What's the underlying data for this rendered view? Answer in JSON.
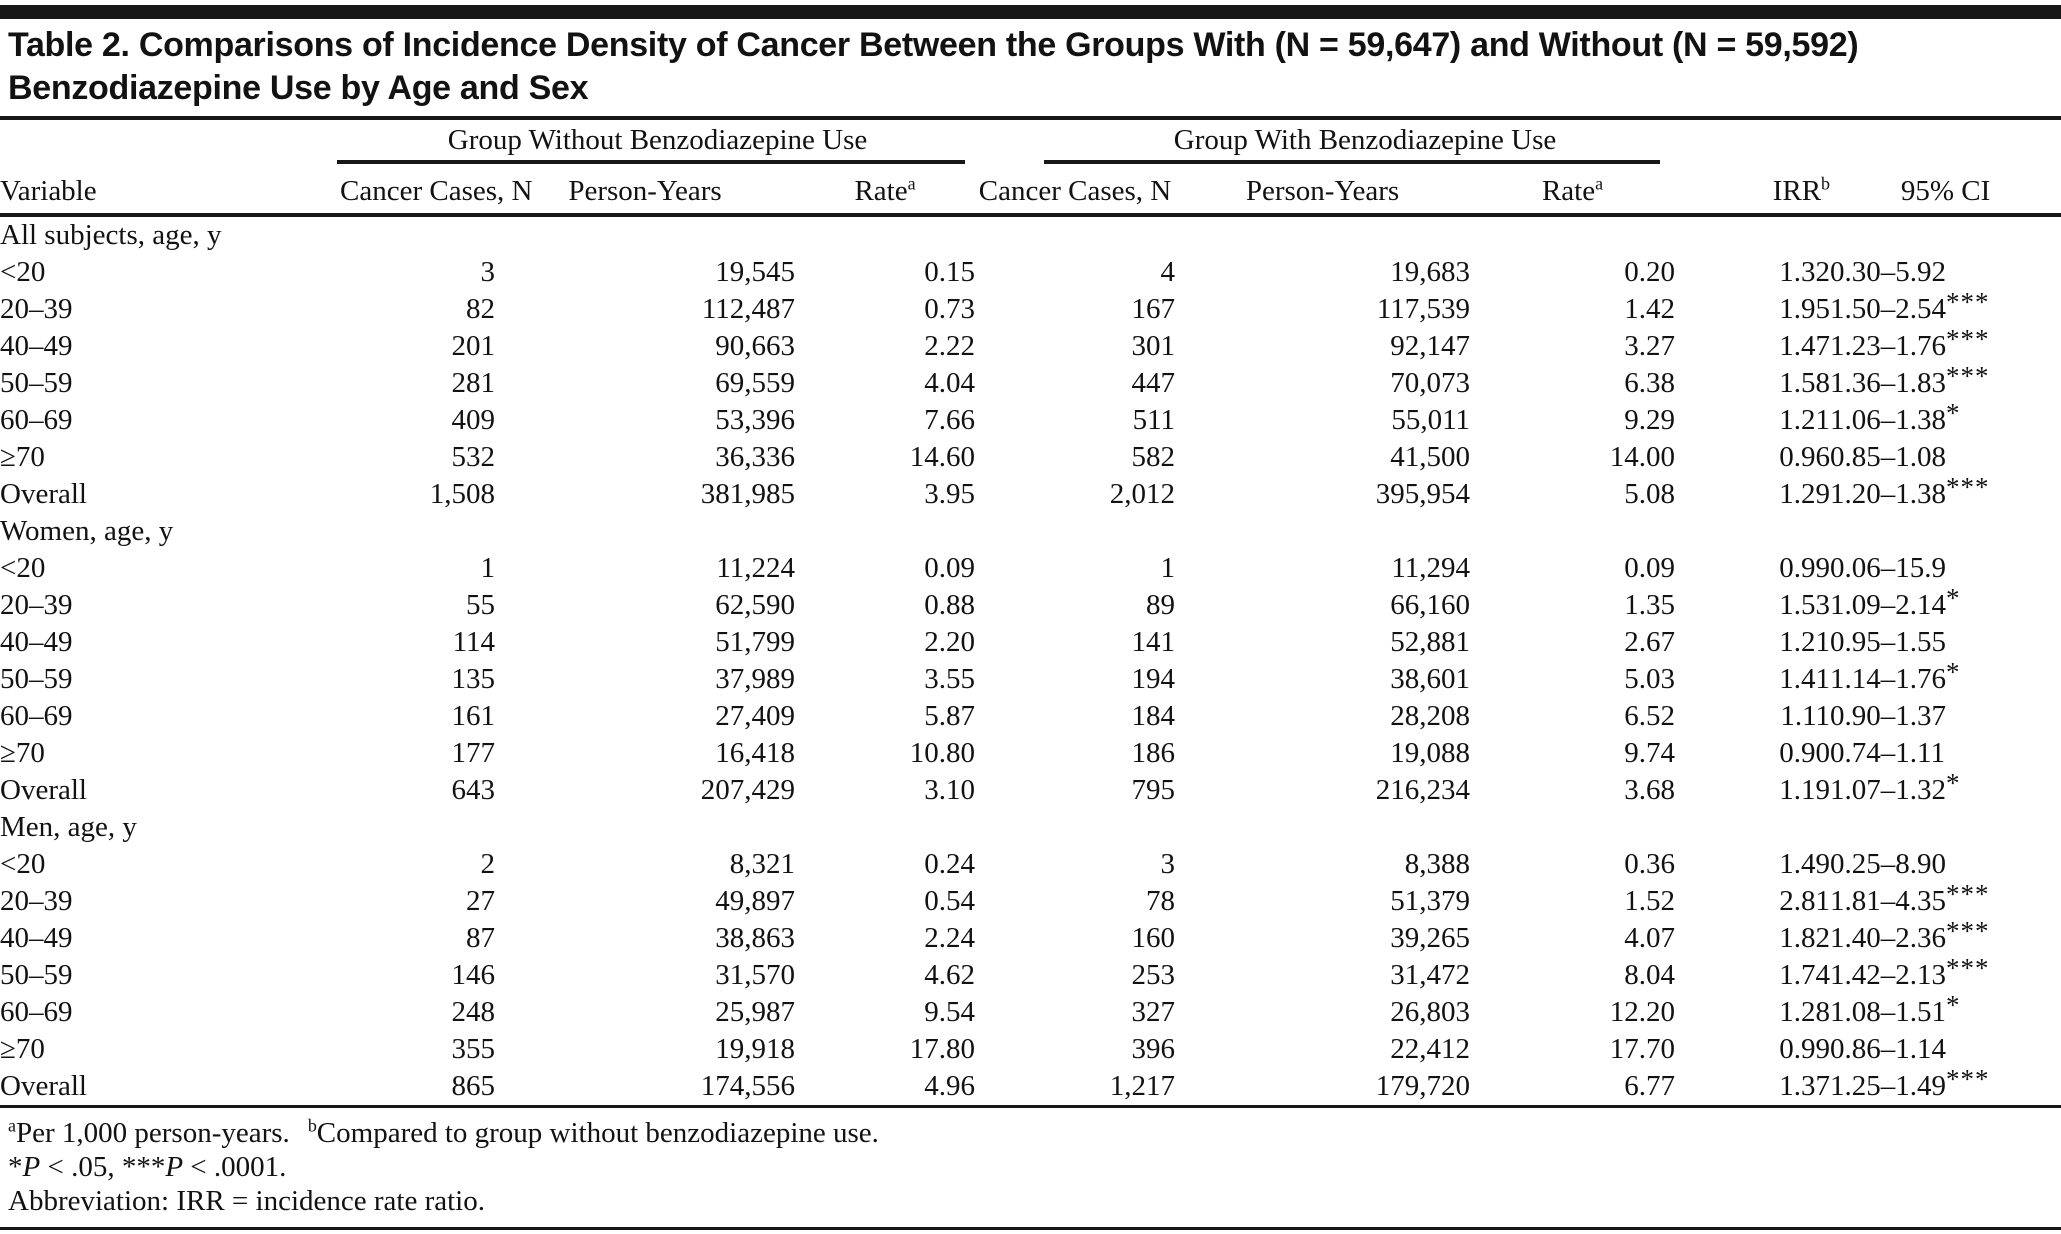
{
  "title": "Table 2. Comparisons of Incidence Density of Cancer Between the Groups With (N = 59,647) and Without (N = 59,592) Benzodiazepine Use by Age and Sex",
  "header": {
    "group_without": "Group Without Benzodiazepine Use",
    "group_with": "Group With Benzodiazepine Use",
    "variable": "Variable",
    "cancer_cases_wo": "Cancer Cases, N",
    "person_years_wo": "Person-Years",
    "rate_wo": "Rate",
    "rate_wo_sup": "a",
    "cancer_cases_w": "Cancer Cases, N",
    "person_years_w": "Person-Years",
    "rate_w": "Rate",
    "rate_w_sup": "a",
    "irr": "IRR",
    "irr_sup": "b",
    "ci": "95% CI"
  },
  "sections": [
    {
      "label": "All subjects, age, y",
      "rows": [
        {
          "variable": "<20",
          "wo_cases": "3",
          "wo_py": "19,545",
          "wo_rate": "0.15",
          "w_cases": "4",
          "w_py": "19,683",
          "w_rate": "0.20",
          "irr": "1.32",
          "ci": "0.30–5.92",
          "sig": ""
        },
        {
          "variable": "20–39",
          "wo_cases": "82",
          "wo_py": "112,487",
          "wo_rate": "0.73",
          "w_cases": "167",
          "w_py": "117,539",
          "w_rate": "1.42",
          "irr": "1.95",
          "ci": "1.50–2.54",
          "sig": "***"
        },
        {
          "variable": "40–49",
          "wo_cases": "201",
          "wo_py": "90,663",
          "wo_rate": "2.22",
          "w_cases": "301",
          "w_py": "92,147",
          "w_rate": "3.27",
          "irr": "1.47",
          "ci": "1.23–1.76",
          "sig": "***"
        },
        {
          "variable": "50–59",
          "wo_cases": "281",
          "wo_py": "69,559",
          "wo_rate": "4.04",
          "w_cases": "447",
          "w_py": "70,073",
          "w_rate": "6.38",
          "irr": "1.58",
          "ci": "1.36–1.83",
          "sig": "***"
        },
        {
          "variable": "60–69",
          "wo_cases": "409",
          "wo_py": "53,396",
          "wo_rate": "7.66",
          "w_cases": "511",
          "w_py": "55,011",
          "w_rate": "9.29",
          "irr": "1.21",
          "ci": "1.06–1.38",
          "sig": "*"
        },
        {
          "variable": "≥70",
          "wo_cases": "532",
          "wo_py": "36,336",
          "wo_rate": "14.60",
          "w_cases": "582",
          "w_py": "41,500",
          "w_rate": "14.00",
          "irr": "0.96",
          "ci": "0.85–1.08",
          "sig": ""
        },
        {
          "variable": "Overall",
          "wo_cases": "1,508",
          "wo_py": "381,985",
          "wo_rate": "3.95",
          "w_cases": "2,012",
          "w_py": "395,954",
          "w_rate": "5.08",
          "irr": "1.29",
          "ci": "1.20–1.38",
          "sig": "***"
        }
      ]
    },
    {
      "label": "Women, age, y",
      "rows": [
        {
          "variable": "<20",
          "wo_cases": "1",
          "wo_py": "11,224",
          "wo_rate": "0.09",
          "w_cases": "1",
          "w_py": "11,294",
          "w_rate": "0.09",
          "irr": "0.99",
          "ci": "0.06–15.9",
          "sig": ""
        },
        {
          "variable": "20–39",
          "wo_cases": "55",
          "wo_py": "62,590",
          "wo_rate": "0.88",
          "w_cases": "89",
          "w_py": "66,160",
          "w_rate": "1.35",
          "irr": "1.53",
          "ci": "1.09–2.14",
          "sig": "*"
        },
        {
          "variable": "40–49",
          "wo_cases": "114",
          "wo_py": "51,799",
          "wo_rate": "2.20",
          "w_cases": "141",
          "w_py": "52,881",
          "w_rate": "2.67",
          "irr": "1.21",
          "ci": "0.95–1.55",
          "sig": ""
        },
        {
          "variable": "50–59",
          "wo_cases": "135",
          "wo_py": "37,989",
          "wo_rate": "3.55",
          "w_cases": "194",
          "w_py": "38,601",
          "w_rate": "5.03",
          "irr": "1.41",
          "ci": "1.14–1.76",
          "sig": "*"
        },
        {
          "variable": "60–69",
          "wo_cases": "161",
          "wo_py": "27,409",
          "wo_rate": "5.87",
          "w_cases": "184",
          "w_py": "28,208",
          "w_rate": "6.52",
          "irr": "1.11",
          "ci": "0.90–1.37",
          "sig": ""
        },
        {
          "variable": "≥70",
          "wo_cases": "177",
          "wo_py": "16,418",
          "wo_rate": "10.80",
          "w_cases": "186",
          "w_py": "19,088",
          "w_rate": "9.74",
          "irr": "0.90",
          "ci": "0.74–1.11",
          "sig": ""
        },
        {
          "variable": "Overall",
          "wo_cases": "643",
          "wo_py": "207,429",
          "wo_rate": "3.10",
          "w_cases": "795",
          "w_py": "216,234",
          "w_rate": "3.68",
          "irr": "1.19",
          "ci": "1.07–1.32",
          "sig": "*"
        }
      ]
    },
    {
      "label": "Men, age, y",
      "rows": [
        {
          "variable": "<20",
          "wo_cases": "2",
          "wo_py": "8,321",
          "wo_rate": "0.24",
          "w_cases": "3",
          "w_py": "8,388",
          "w_rate": "0.36",
          "irr": "1.49",
          "ci": "0.25–8.90",
          "sig": ""
        },
        {
          "variable": "20–39",
          "wo_cases": "27",
          "wo_py": "49,897",
          "wo_rate": "0.54",
          "w_cases": "78",
          "w_py": "51,379",
          "w_rate": "1.52",
          "irr": "2.81",
          "ci": "1.81–4.35",
          "sig": "***"
        },
        {
          "variable": "40–49",
          "wo_cases": "87",
          "wo_py": "38,863",
          "wo_rate": "2.24",
          "w_cases": "160",
          "w_py": "39,265",
          "w_rate": "4.07",
          "irr": "1.82",
          "ci": "1.40–2.36",
          "sig": "***"
        },
        {
          "variable": "50–59",
          "wo_cases": "146",
          "wo_py": "31,570",
          "wo_rate": "4.62",
          "w_cases": "253",
          "w_py": "31,472",
          "w_rate": "8.04",
          "irr": "1.74",
          "ci": "1.42–2.13",
          "sig": "***"
        },
        {
          "variable": "60–69",
          "wo_cases": "248",
          "wo_py": "25,987",
          "wo_rate": "9.54",
          "w_cases": "327",
          "w_py": "26,803",
          "w_rate": "12.20",
          "irr": "1.28",
          "ci": "1.08–1.51",
          "sig": "*"
        },
        {
          "variable": "≥70",
          "wo_cases": "355",
          "wo_py": "19,918",
          "wo_rate": "17.80",
          "w_cases": "396",
          "w_py": "22,412",
          "w_rate": "17.70",
          "irr": "0.99",
          "ci": "0.86–1.14",
          "sig": ""
        },
        {
          "variable": "Overall",
          "wo_cases": "865",
          "wo_py": "174,556",
          "wo_rate": "4.96",
          "w_cases": "1,217",
          "w_py": "179,720",
          "w_rate": "6.77",
          "irr": "1.37",
          "ci": "1.25–1.49",
          "sig": "***"
        }
      ]
    }
  ],
  "footnotes": {
    "line1_segments": [
      {
        "t": "a",
        "sup": true
      },
      {
        "t": "Per 1,000 person-years."
      },
      {
        "t": "",
        "gap": true
      },
      {
        "t": "b",
        "sup": true
      },
      {
        "t": "Compared to group without benzodiazepine use."
      }
    ],
    "line2_segments": [
      {
        "t": "*"
      },
      {
        "t": "P",
        "i": true
      },
      {
        "t": " < .05, "
      },
      {
        "t": "***"
      },
      {
        "t": "P",
        "i": true
      },
      {
        "t": " < .0001."
      }
    ],
    "abbreviation": "Abbreviation: IRR = incidence rate ratio."
  },
  "colors": {
    "text": "#121212",
    "rule": "#171717",
    "background": "#ffffff"
  }
}
